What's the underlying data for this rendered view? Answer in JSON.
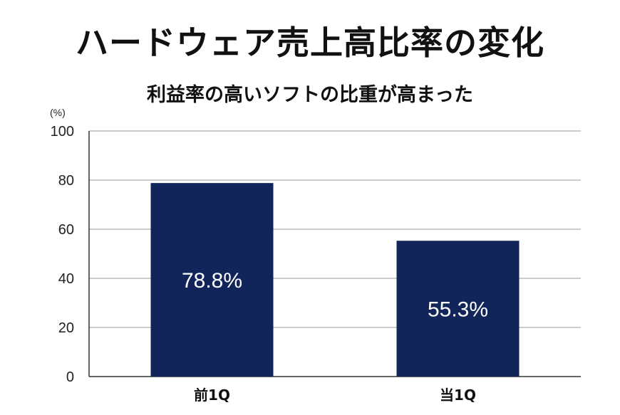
{
  "chart_data": {
    "type": "bar",
    "title": "ハードウェア売上高比率の変化",
    "subtitle": "利益率の高いソフトの比重が高まった",
    "unit_label": "(%)",
    "categories": [
      "前1Q",
      "当1Q"
    ],
    "values": [
      78.8,
      55.3
    ],
    "data_labels": [
      "78.8%",
      "55.3%"
    ],
    "ylim": [
      0,
      100
    ],
    "yticks": [
      0,
      20,
      40,
      60,
      80,
      100
    ],
    "grid": true,
    "bar_color": "#12255a",
    "grid_color": "#9a9a9a",
    "xlabel": "",
    "ylabel": ""
  }
}
